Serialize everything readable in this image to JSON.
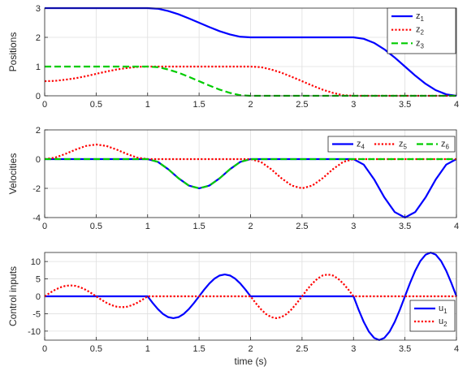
{
  "chart_data": [
    {
      "type": "line",
      "ylabel": "Positions",
      "xlabel": "",
      "xlim": [
        0,
        4
      ],
      "ylim": [
        0,
        3
      ],
      "xticks": [
        "0",
        "0.5",
        "1",
        "1.5",
        "2",
        "2.5",
        "3",
        "3.5",
        "4"
      ],
      "yticks": [
        "0",
        "1",
        "2",
        "3"
      ],
      "grid": true,
      "legend": "top-right",
      "series": [
        {
          "name": "z",
          "sub": "1",
          "color": "#0000ff",
          "style": "solid",
          "x": [
            0,
            1,
            1.1,
            1.2,
            1.3,
            1.4,
            1.5,
            1.6,
            1.7,
            1.8,
            1.9,
            2,
            3,
            3.1,
            3.2,
            3.3,
            3.4,
            3.5,
            3.6,
            3.7,
            3.8,
            3.9,
            4
          ],
          "y": [
            3,
            3,
            2.98,
            2.9,
            2.79,
            2.65,
            2.5,
            2.35,
            2.21,
            2.1,
            2.02,
            2,
            2,
            1.95,
            1.81,
            1.59,
            1.31,
            1.0,
            0.69,
            0.41,
            0.19,
            0.05,
            0
          ]
        },
        {
          "name": "z",
          "sub": "2",
          "color": "#ff0000",
          "style": "dotted",
          "x": [
            0,
            0.1,
            0.2,
            0.3,
            0.4,
            0.5,
            0.6,
            0.7,
            0.8,
            0.9,
            1,
            2,
            2.1,
            2.2,
            2.3,
            2.4,
            2.5,
            2.6,
            2.7,
            2.8,
            2.9,
            3,
            4
          ],
          "y": [
            0.5,
            0.51,
            0.55,
            0.6,
            0.67,
            0.75,
            0.83,
            0.9,
            0.95,
            0.99,
            1.0,
            1.0,
            0.98,
            0.9,
            0.79,
            0.65,
            0.5,
            0.35,
            0.21,
            0.1,
            0.02,
            0,
            0
          ]
        },
        {
          "name": "z",
          "sub": "3",
          "color": "#00cc00",
          "style": "dashed",
          "x": [
            0,
            1,
            1.1,
            1.2,
            1.3,
            1.4,
            1.5,
            1.6,
            1.7,
            1.8,
            1.9,
            2,
            4
          ],
          "y": [
            1,
            1,
            0.98,
            0.9,
            0.79,
            0.65,
            0.5,
            0.35,
            0.21,
            0.1,
            0.02,
            0,
            0
          ]
        }
      ]
    },
    {
      "type": "line",
      "ylabel": "Velocities",
      "xlabel": "",
      "xlim": [
        0,
        4
      ],
      "ylim": [
        -4,
        2
      ],
      "xticks": [
        "0",
        "0.5",
        "1",
        "1.5",
        "2",
        "2.5",
        "3",
        "3.5",
        "4"
      ],
      "yticks": [
        "-4",
        "-2",
        "0",
        "2"
      ],
      "grid": true,
      "legend": "top-right",
      "series": [
        {
          "name": "z",
          "sub": "4",
          "color": "#0000ff",
          "style": "solid",
          "x": [
            0,
            1,
            1.1,
            1.2,
            1.3,
            1.4,
            1.5,
            1.6,
            1.7,
            1.8,
            1.9,
            2,
            3,
            3.1,
            3.2,
            3.3,
            3.4,
            3.5,
            3.6,
            3.7,
            3.8,
            3.9,
            4
          ],
          "y": [
            0,
            0,
            -0.19,
            -0.69,
            -1.31,
            -1.81,
            -2,
            -1.81,
            -1.31,
            -0.69,
            -0.19,
            0,
            0,
            -0.38,
            -1.38,
            -2.62,
            -3.62,
            -4,
            -3.62,
            -2.62,
            -1.38,
            -0.38,
            0
          ]
        },
        {
          "name": "z",
          "sub": "5",
          "color": "#ff0000",
          "style": "dotted",
          "x": [
            0,
            0.1,
            0.2,
            0.3,
            0.4,
            0.5,
            0.6,
            0.7,
            0.8,
            0.9,
            1,
            2,
            2.1,
            2.2,
            2.3,
            2.4,
            2.5,
            2.6,
            2.7,
            2.8,
            2.9,
            3,
            4
          ],
          "y": [
            0,
            0.1,
            0.35,
            0.65,
            0.9,
            1.0,
            0.9,
            0.65,
            0.35,
            0.1,
            0,
            0,
            -0.19,
            -0.69,
            -1.31,
            -1.81,
            -2,
            -1.81,
            -1.31,
            -0.69,
            -0.19,
            0,
            0
          ]
        },
        {
          "name": "z",
          "sub": "6",
          "color": "#00cc00",
          "style": "dashed",
          "x": [
            0,
            1,
            1.1,
            1.2,
            1.3,
            1.4,
            1.5,
            1.6,
            1.7,
            1.8,
            1.9,
            2,
            4
          ],
          "y": [
            0,
            0,
            -0.19,
            -0.69,
            -1.31,
            -1.81,
            -2,
            -1.81,
            -1.31,
            -0.69,
            -0.19,
            0,
            0
          ]
        }
      ]
    },
    {
      "type": "line",
      "ylabel": "Control inputs",
      "xlabel": "time (s)",
      "xlim": [
        0,
        4
      ],
      "ylim": [
        -12.6,
        12.6
      ],
      "xticks": [
        "0",
        "0.5",
        "1",
        "1.5",
        "2",
        "2.5",
        "3",
        "3.5",
        "4"
      ],
      "yticks": [
        "-10",
        "-5",
        "0",
        "5",
        "10"
      ],
      "grid": true,
      "legend": "bottom-right",
      "series": [
        {
          "name": "u",
          "sub": "1",
          "color": "#0000ff",
          "style": "solid",
          "x": [
            0,
            1,
            1.05,
            1.1,
            1.15,
            1.2,
            1.25,
            1.3,
            1.35,
            1.4,
            1.45,
            1.5,
            1.55,
            1.6,
            1.65,
            1.7,
            1.75,
            1.8,
            1.85,
            1.9,
            1.95,
            2,
            3,
            3.05,
            3.1,
            3.15,
            3.2,
            3.25,
            3.3,
            3.35,
            3.4,
            3.45,
            3.5,
            3.55,
            3.6,
            3.65,
            3.7,
            3.75,
            3.8,
            3.85,
            3.9,
            3.95,
            4
          ],
          "y": [
            0,
            0,
            -1.94,
            -3.69,
            -5.08,
            -5.98,
            -6.28,
            -5.98,
            -5.08,
            -3.69,
            -1.94,
            0,
            1.94,
            3.69,
            5.08,
            5.98,
            6.28,
            5.98,
            5.08,
            3.69,
            1.94,
            0,
            0,
            -3.88,
            -7.39,
            -10.17,
            -11.95,
            -12.57,
            -11.95,
            -10.17,
            -7.39,
            -3.88,
            0,
            3.88,
            7.39,
            10.17,
            11.95,
            12.57,
            11.95,
            10.17,
            7.39,
            3.88,
            0
          ]
        },
        {
          "name": "u",
          "sub": "2",
          "color": "#ff0000",
          "style": "dotted",
          "x": [
            0,
            0.05,
            0.1,
            0.15,
            0.2,
            0.25,
            0.3,
            0.35,
            0.4,
            0.45,
            0.5,
            0.55,
            0.6,
            0.65,
            0.7,
            0.75,
            0.8,
            0.85,
            0.9,
            0.95,
            1,
            2,
            2.05,
            2.1,
            2.15,
            2.2,
            2.25,
            2.3,
            2.35,
            2.4,
            2.45,
            2.5,
            2.55,
            2.6,
            2.65,
            2.7,
            2.75,
            2.8,
            2.85,
            2.9,
            2.95,
            3,
            4
          ],
          "y": [
            0,
            0.97,
            1.85,
            2.54,
            2.99,
            3.14,
            2.99,
            2.54,
            1.85,
            0.97,
            0,
            -0.97,
            -1.85,
            -2.54,
            -2.99,
            -3.14,
            -2.99,
            -2.54,
            -1.85,
            -0.97,
            0,
            0,
            -1.94,
            -3.69,
            -5.08,
            -5.98,
            -6.28,
            -5.98,
            -5.08,
            -3.69,
            -1.94,
            0,
            1.94,
            3.69,
            5.08,
            5.98,
            6.28,
            5.98,
            5.08,
            3.69,
            1.94,
            0,
            0
          ]
        }
      ]
    }
  ]
}
